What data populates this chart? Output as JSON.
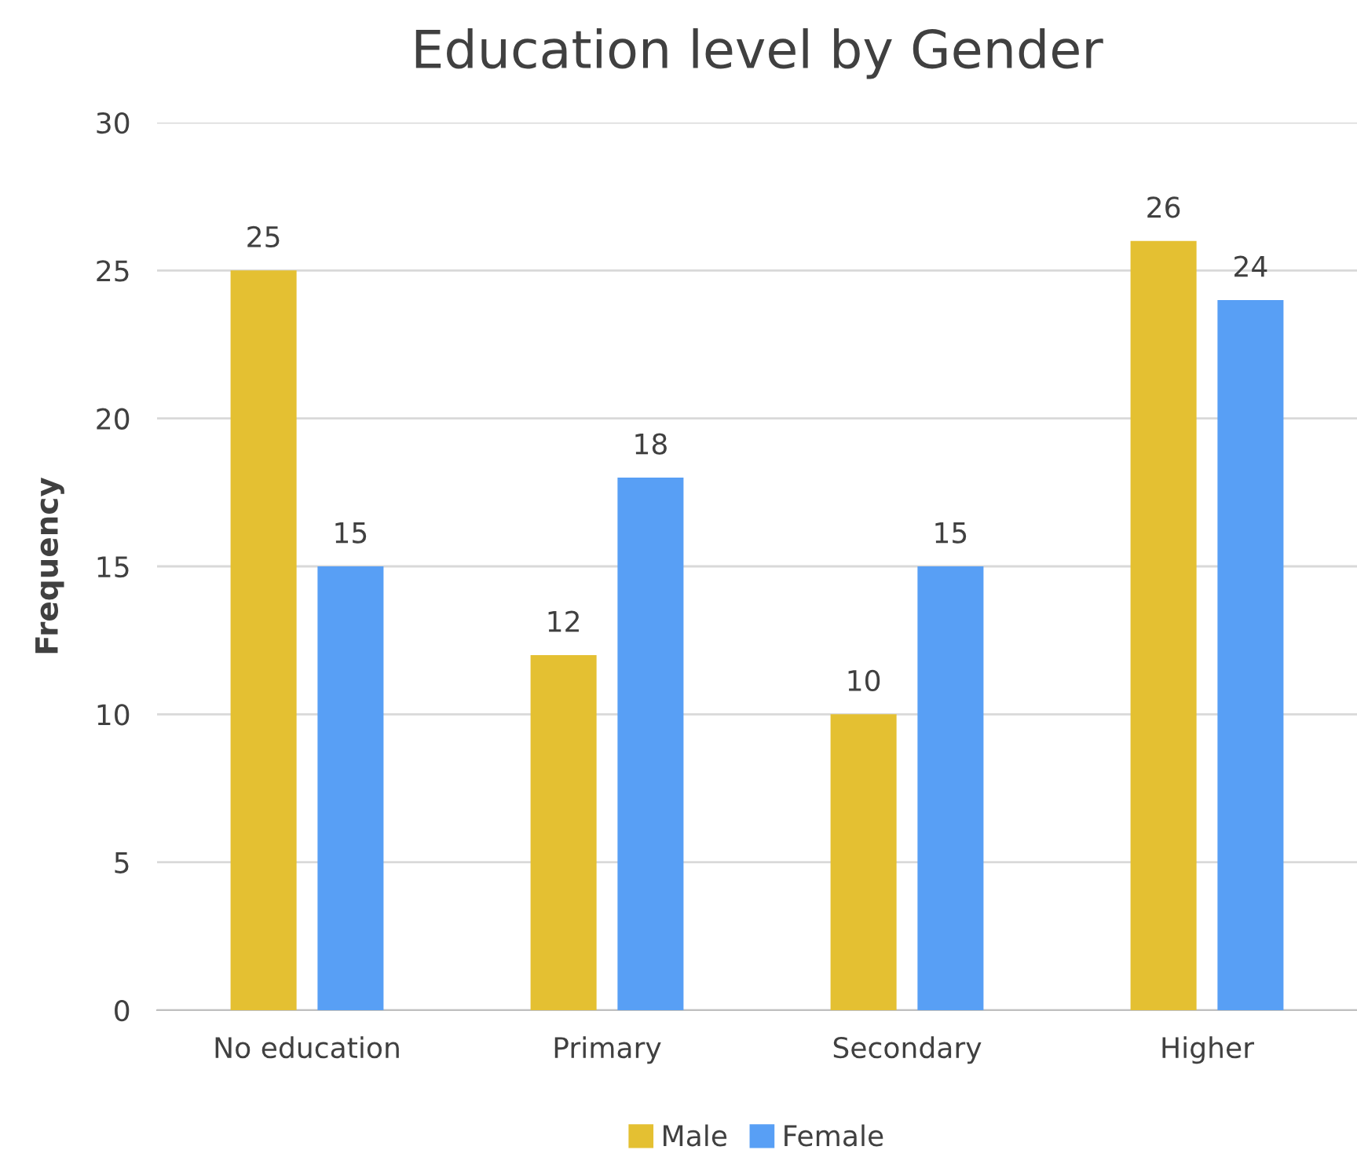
{
  "chart_data": {
    "type": "bar",
    "title": "Education level by Gender",
    "ylabel": "Frequency",
    "categories": [
      "No education",
      "Primary",
      "Secondary",
      "Higher"
    ],
    "series": [
      {
        "name": "Male",
        "color": "#e4c032",
        "values": [
          25,
          12,
          10,
          26
        ]
      },
      {
        "name": "Female",
        "color": "#589ff5",
        "values": [
          15,
          18,
          15,
          24
        ]
      }
    ],
    "ylim": [
      0,
      30
    ],
    "yticks": [
      0,
      5,
      10,
      15,
      20,
      25,
      30
    ],
    "grid": "y",
    "legend": "bottom",
    "data_labels": true
  }
}
